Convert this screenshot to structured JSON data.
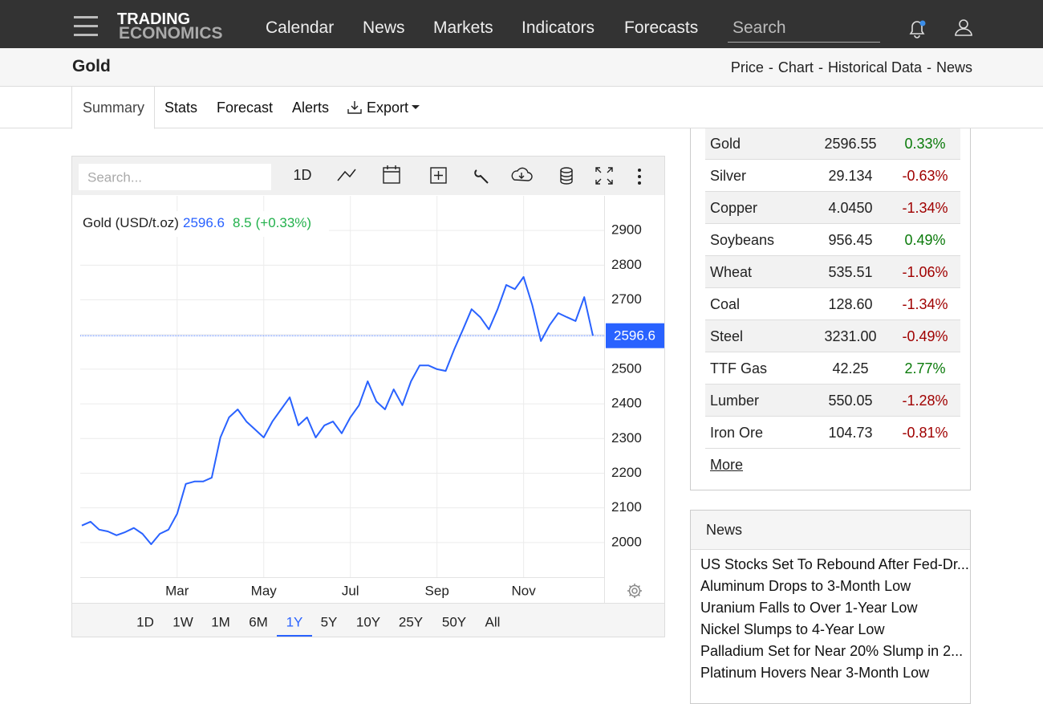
{
  "nav": {
    "logo": [
      "TRADING",
      "ECONOMICS"
    ],
    "links": [
      "Calendar",
      "News",
      "Markets",
      "Indicators",
      "Forecasts"
    ],
    "search_placeholder": "Search"
  },
  "header": {
    "title": "Gold",
    "links": [
      "Price",
      "Chart",
      "Historical Data",
      "News"
    ],
    "separator": "-"
  },
  "tabs": {
    "items": [
      "Summary",
      "Stats",
      "Forecast",
      "Alerts",
      "Export"
    ],
    "active": 0
  },
  "chart_toolbar": {
    "search_placeholder": "Search...",
    "interval": "1D"
  },
  "chart_data": {
    "type": "line",
    "series_name": "Gold (USD/t.oz)",
    "last": 2596.6,
    "change": 8.5,
    "change_pct_label": "(+0.33%)",
    "color": "#2962ff",
    "change_color": "#22b14c",
    "categories": [
      null,
      null,
      null,
      null,
      null,
      null,
      null,
      null,
      null,
      null,
      null,
      "Mar",
      null,
      null,
      null,
      null,
      null,
      null,
      null,
      null,
      null,
      "May",
      null,
      null,
      null,
      null,
      null,
      null,
      null,
      null,
      null,
      "Jul",
      null,
      null,
      null,
      null,
      null,
      null,
      null,
      null,
      null,
      "Sep",
      null,
      null,
      null,
      null,
      null,
      null,
      null,
      null,
      null,
      "Nov",
      null,
      null,
      null,
      null,
      null,
      null,
      null,
      null
    ],
    "values": [
      2049,
      2060,
      2037,
      2032,
      2021,
      2030,
      2042,
      2025,
      1995,
      2025,
      2037,
      2083,
      2169,
      2176,
      2176,
      2187,
      2303,
      2361,
      2384,
      2349,
      2326,
      2303,
      2349,
      2384,
      2419,
      2338,
      2361,
      2303,
      2338,
      2349,
      2315,
      2361,
      2396,
      2465,
      2407,
      2384,
      2442,
      2396,
      2465,
      2511,
      2511,
      2500,
      2495,
      2558,
      2615,
      2673,
      2650,
      2615,
      2673,
      2743,
      2731,
      2766,
      2685,
      2581,
      2627,
      2662,
      2650,
      2639,
      2708,
      2596.6
    ],
    "ylim": [
      1900,
      3000
    ],
    "yticks": [
      2000,
      2100,
      2200,
      2300,
      2400,
      2500,
      2600,
      2700,
      2800,
      2900
    ],
    "grid": true
  },
  "ranges": {
    "items": [
      "1D",
      "1W",
      "1M",
      "6M",
      "1Y",
      "5Y",
      "10Y",
      "25Y",
      "50Y",
      "All"
    ],
    "active": 4
  },
  "commodities": {
    "rows": [
      {
        "name": "Gold",
        "price": "2596.55",
        "change": "0.33%"
      },
      {
        "name": "Silver",
        "price": "29.134",
        "change": "-0.63%"
      },
      {
        "name": "Copper",
        "price": "4.0450",
        "change": "-1.34%"
      },
      {
        "name": "Soybeans",
        "price": "956.45",
        "change": "0.49%"
      },
      {
        "name": "Wheat",
        "price": "535.51",
        "change": "-1.06%"
      },
      {
        "name": "Coal",
        "price": "128.60",
        "change": "-1.34%"
      },
      {
        "name": "Steel",
        "price": "3231.00",
        "change": "-0.49%"
      },
      {
        "name": "TTF Gas",
        "price": "42.25",
        "change": "2.77%"
      },
      {
        "name": "Lumber",
        "price": "550.05",
        "change": "-1.28%"
      },
      {
        "name": "Iron Ore",
        "price": "104.73",
        "change": "-0.81%"
      }
    ],
    "more": "More"
  },
  "news": {
    "title": "News",
    "items": [
      "US Stocks Set To Rebound After Fed-Dr...",
      "Aluminum Drops to 3-Month Low",
      "Uranium Falls to Over 1-Year Low",
      "Nickel Slumps to 4-Year Low",
      "Palladium Set for Near 20% Slump in 2...",
      "Platinum Hovers Near 3-Month Low"
    ]
  }
}
